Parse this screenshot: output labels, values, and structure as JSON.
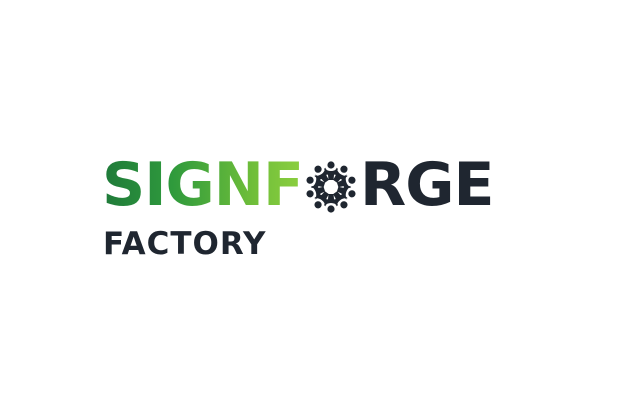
{
  "logo": {
    "word_left": "SIGNF",
    "word_right": "RGE",
    "tagline": "FACTORY",
    "emblem_icon": "people-circle-emblem-icon",
    "colors": {
      "gradient_start": "#1f7a3a",
      "gradient_end": "#8ccf3f",
      "dark": "#1f2630",
      "background": "#ffffff"
    }
  }
}
